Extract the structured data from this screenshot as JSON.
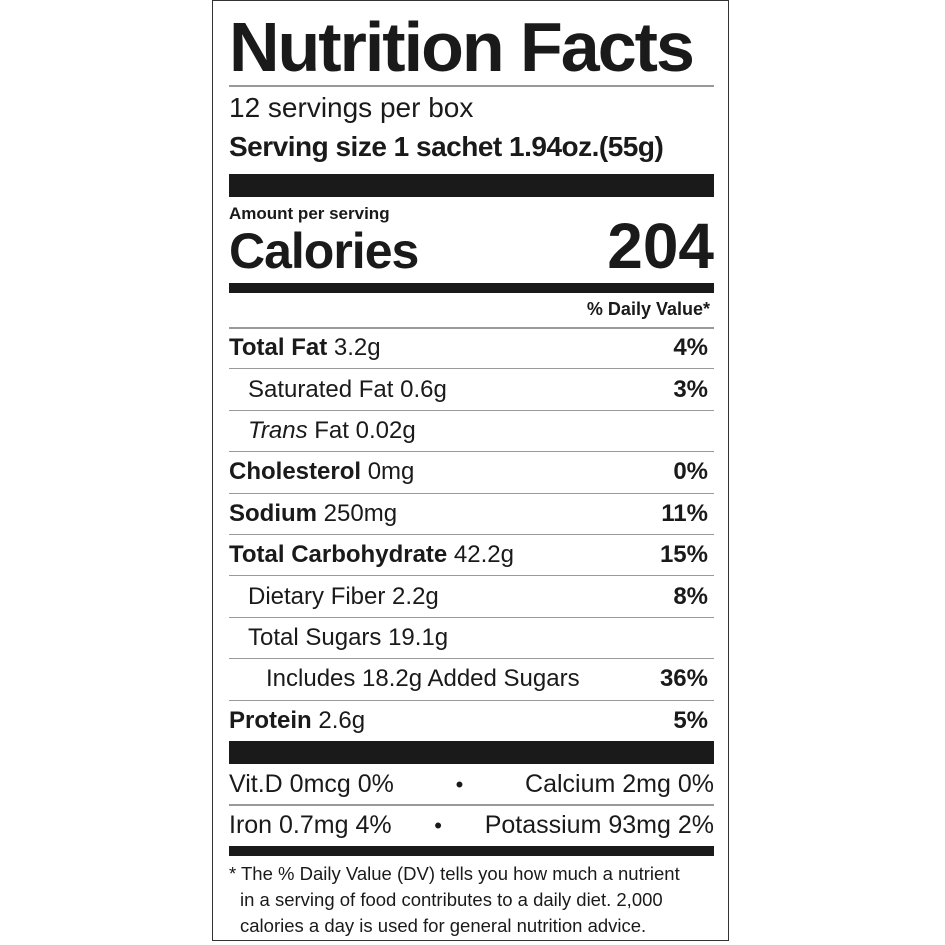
{
  "title": "Nutrition Facts",
  "servings_per_container": "12 servings per box",
  "serving_size": "Serving size 1 sachet 1.94oz.(55g)",
  "amount_per_serving": "Amount per serving",
  "calories_label": "Calories",
  "calories_value": "204",
  "daily_value_header": "% Daily Value*",
  "nutrients": [
    {
      "name": "Total Fat",
      "amount": "3.2g",
      "dv": "4%"
    },
    {
      "name": "Saturated Fat",
      "amount": "0.6g",
      "dv": "3%"
    },
    {
      "name_italic": "Trans",
      "name": "Fat",
      "amount": "0.02g",
      "dv": ""
    },
    {
      "name": "Cholesterol",
      "amount": "0mg",
      "dv": "0%"
    },
    {
      "name": "Sodium",
      "amount": "250mg",
      "dv": "11%"
    },
    {
      "name": "Total Carbohydrate",
      "amount": "42.2g",
      "dv": "15%"
    },
    {
      "name": "Dietary Fiber",
      "amount": "2.2g",
      "dv": "8%"
    },
    {
      "name": "Total Sugars",
      "amount": "19.1g",
      "dv": ""
    },
    {
      "name": "Includes 18.2g Added Sugars",
      "amount": "",
      "dv": "36%"
    },
    {
      "name": "Protein",
      "amount": "2.6g",
      "dv": "5%"
    }
  ],
  "vitamins": [
    {
      "left": "Vit.D 0mcg 0%",
      "right": "Calcium 2mg 0%"
    },
    {
      "left": "Iron 0.7mg 4%",
      "right": "Potassium 93mg 2%"
    }
  ],
  "separator": "•",
  "footnote": [
    "* The % Daily Value (DV) tells you how much a nutrient",
    "in a serving of food contributes to a daily diet. 2,000",
    "calories a day is used for general nutrition advice."
  ]
}
